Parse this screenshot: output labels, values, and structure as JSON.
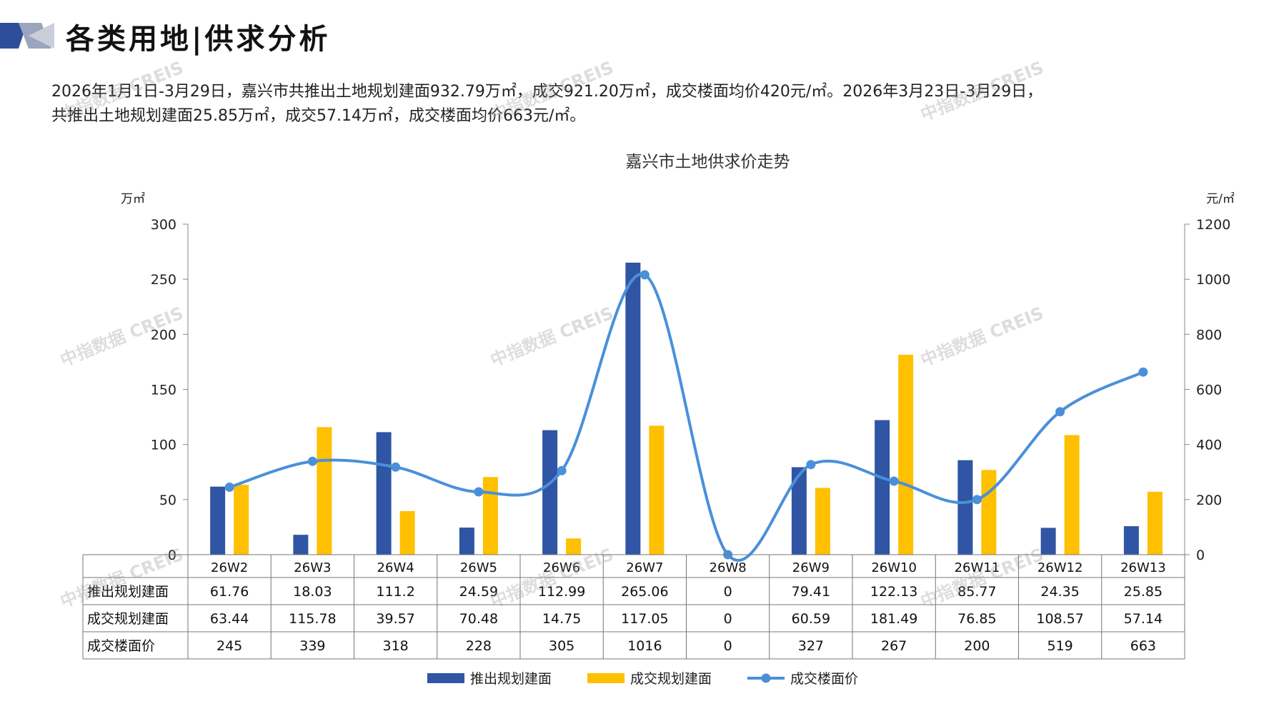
{
  "page": {
    "title": "各类用地|供求分析",
    "summary_line1": "2026年1月1日-3月29日，嘉兴市共推出土地规划建面932.79万㎡，成交921.20万㎡，成交楼面均价420元/㎡。2026年3月23日-3月29日，",
    "summary_line2": "共推出土地规划建面25.85万㎡，成交57.14万㎡，成交楼面均价663元/㎡。",
    "watermark": "中指数据 CREIS"
  },
  "colors": {
    "supply": "#2F55A4",
    "deal": "#FFC000",
    "price": "#4A90D9",
    "accent": "#3A5BA0"
  },
  "chart_data": {
    "type": "bar",
    "title": "嘉兴市土地供求价走势",
    "left_unit": "万㎡",
    "right_unit": "元/㎡",
    "categories": [
      "26W2",
      "26W3",
      "26W4",
      "26W5",
      "26W6",
      "26W7",
      "26W8",
      "26W9",
      "26W10",
      "26W11",
      "26W12",
      "26W13"
    ],
    "ylim_left": [
      0,
      300
    ],
    "yticks_left": [
      0,
      50,
      100,
      150,
      200,
      250,
      300
    ],
    "ylim_right": [
      0,
      1200
    ],
    "yticks_right": [
      0,
      200,
      400,
      600,
      800,
      1000,
      1200
    ],
    "series": [
      {
        "name": "推出规划建面",
        "type": "bar",
        "axis": "left",
        "values": [
          61.76,
          18.03,
          111.2,
          24.59,
          112.99,
          265.06,
          0,
          79.41,
          122.13,
          85.77,
          24.35,
          25.85
        ],
        "labels": [
          "61.76",
          "18.03",
          "111.2",
          "24.59",
          "112.99",
          "265.06",
          "0",
          "79.41",
          "122.13",
          "85.77",
          "24.35",
          "25.85"
        ]
      },
      {
        "name": "成交规划建面",
        "type": "bar",
        "axis": "left",
        "values": [
          63.44,
          115.78,
          39.57,
          70.48,
          14.75,
          117.05,
          0,
          60.59,
          181.49,
          76.85,
          108.57,
          57.14
        ],
        "labels": [
          "63.44",
          "115.78",
          "39.57",
          "70.48",
          "14.75",
          "117.05",
          "0",
          "60.59",
          "181.49",
          "76.85",
          "108.57",
          "57.14"
        ]
      },
      {
        "name": "成交楼面价",
        "type": "line",
        "axis": "right",
        "values": [
          245,
          339,
          318,
          228,
          305,
          1016,
          0,
          327,
          267,
          200,
          519,
          663
        ],
        "labels": [
          "245",
          "339",
          "318",
          "228",
          "305",
          "1016",
          "0",
          "327",
          "267",
          "200",
          "519",
          "663"
        ]
      }
    ],
    "table_row_headers": [
      "推出规划建面",
      "成交规划建面",
      "成交楼面价"
    ],
    "legend": [
      "推出规划建面",
      "成交规划建面",
      "成交楼面价"
    ],
    "legend_position": "bottom",
    "grid": false
  }
}
